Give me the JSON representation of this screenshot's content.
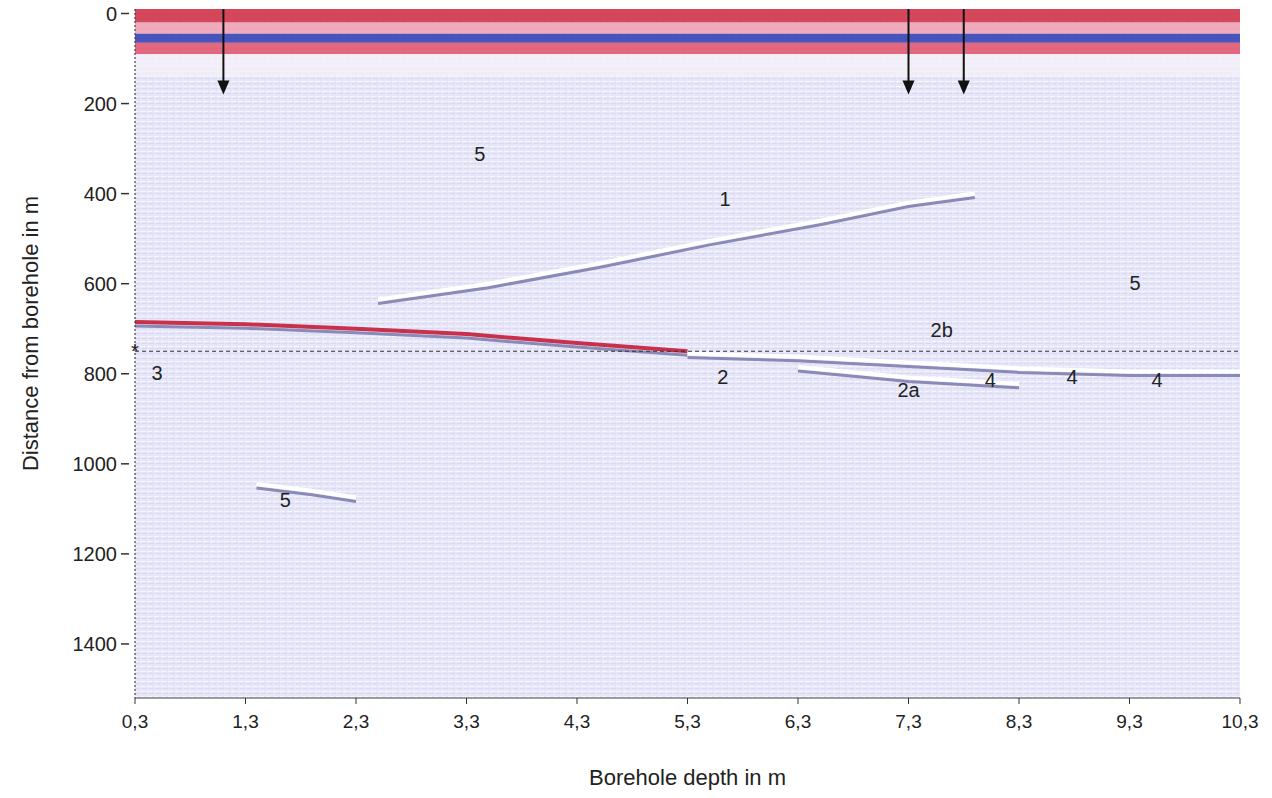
{
  "chart_data": {
    "type": "radargram",
    "x_label": "Borehole depth in m",
    "y_label": "Distance from borehole in m",
    "xlim": [
      0.3,
      10.3
    ],
    "xticks": [
      {
        "value": 0.3,
        "label": "0,3"
      },
      {
        "value": 1.3,
        "label": "1,3"
      },
      {
        "value": 2.3,
        "label": "2,3"
      },
      {
        "value": 3.3,
        "label": "3,3"
      },
      {
        "value": 4.3,
        "label": "4,3"
      },
      {
        "value": 5.3,
        "label": "5,3"
      },
      {
        "value": 6.3,
        "label": "6,3"
      },
      {
        "value": 7.3,
        "label": "7,3"
      },
      {
        "value": 8.3,
        "label": "8,3"
      },
      {
        "value": 9.3,
        "label": "9,3"
      },
      {
        "value": 10.3,
        "label": "10,3"
      }
    ],
    "ylim": [
      -10,
      1520
    ],
    "yticks": [
      0,
      200,
      400,
      600,
      800,
      1000,
      1200,
      1400
    ],
    "grid": false,
    "bands": [
      {
        "y0": -10,
        "y1": 20,
        "color": "#d02a40"
      },
      {
        "y0": 20,
        "y1": 45,
        "color": "#f0a0b0"
      },
      {
        "y0": 45,
        "y1": 65,
        "color": "#2a3ab0"
      },
      {
        "y0": 65,
        "y1": 90,
        "color": "#e0506a"
      },
      {
        "y0": 90,
        "y1": 140,
        "color": "#f4f0f8"
      }
    ],
    "series": [
      {
        "color": "#ffffff",
        "x": [
          2.5,
          3.5,
          4.5,
          5.5,
          6.5,
          7.3,
          7.9
        ],
        "y": [
          635,
          600,
          555,
          505,
          460,
          420,
          400
        ]
      },
      {
        "color": "#c8304c",
        "x": [
          0.3,
          1.3,
          2.3,
          3.3,
          4.3,
          5.3
        ],
        "y": [
          685,
          690,
          700,
          712,
          732,
          750
        ]
      },
      {
        "color": "#ffffff",
        "x": [
          5.3,
          6.3,
          7.3,
          8.3,
          9.3,
          10.3
        ],
        "y": [
          755,
          762,
          775,
          788,
          795,
          795
        ]
      },
      {
        "color": "#ffffff",
        "x": [
          6.3,
          7.3,
          8.3
        ],
        "y": [
          785,
          808,
          822
        ]
      },
      {
        "color": "#ffffff",
        "x": [
          1.4,
          1.9,
          2.3
        ],
        "y": [
          1045,
          1060,
          1075
        ]
      }
    ],
    "reference_lines": [
      {
        "y": 750
      }
    ],
    "arrows": [
      {
        "x": 1.1,
        "y0": -10,
        "y1": 180
      },
      {
        "x": 7.3,
        "y0": -10,
        "y1": 180
      },
      {
        "x": 7.8,
        "y0": -10,
        "y1": 180
      }
    ],
    "annotations": [
      {
        "text": "5",
        "x": 3.42,
        "y": 313
      },
      {
        "text": "1",
        "x": 5.64,
        "y": 413
      },
      {
        "text": "5",
        "x": 9.35,
        "y": 598
      },
      {
        "text": "2b",
        "x": 7.6,
        "y": 702
      },
      {
        "text": "3",
        "x": 0.5,
        "y": 798
      },
      {
        "text": "2",
        "x": 5.62,
        "y": 807
      },
      {
        "text": "2a",
        "x": 7.3,
        "y": 836
      },
      {
        "text": "4",
        "x": 8.04,
        "y": 813
      },
      {
        "text": "4",
        "x": 8.78,
        "y": 807
      },
      {
        "text": "4",
        "x": 9.55,
        "y": 813
      },
      {
        "text": "5",
        "x": 1.66,
        "y": 1080
      },
      {
        "text": "*",
        "x": 0.3,
        "y": 750
      }
    ]
  }
}
